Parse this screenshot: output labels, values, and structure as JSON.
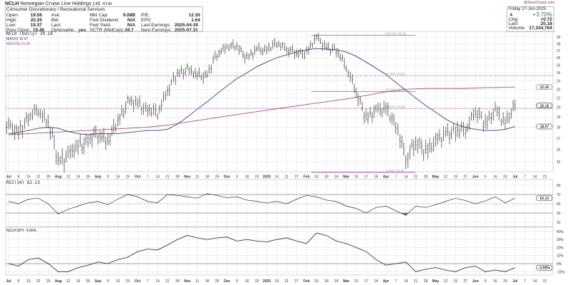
{
  "header": {
    "symbol": "NCLH",
    "name": "Norwegian Cruise Line Holdings Ltd.",
    "exchange": "NYSE",
    "sector": "Consumer Discretionary / Recreational Services",
    "watermark": "@StockCharts.com",
    "fields": {
      "open_label": "Open:",
      "open": "19.56",
      "high_label": "High:",
      "high": "20.25",
      "low_label": "Low:",
      "low": "19.37",
      "prev_label": "Prev Close:",
      "prev": "19.46",
      "ask_label": "Ask:",
      "bid_label": "Bid:",
      "last_label": "Last:",
      "optionable_label": "Optionable:",
      "optionable": "yes",
      "mktcap_label": "Mkt Cap:",
      "mktcap": "9.08B",
      "fwddiv_label": "Fwd Dividend:",
      "fwddiv": "N/A",
      "fwdyield_label": "Fwd Yield:",
      "fwdyield": "N/A",
      "sctr_label": "SCTR (MidCap):",
      "sctr": "28.7",
      "pe_label": "P/E:",
      "pe": "12.30",
      "eps_label": "EPS:",
      "eps": "1.64",
      "lastearn_label": "Last Earnings:",
      "lastearn": "2025-04-30",
      "nextearn_label": "Next Earnings:",
      "nextearn": "2025-07.31"
    },
    "summary": {
      "date": "Friday  27-Jun-2025",
      "pct": "+3.70%",
      "chg_label": "Chg:",
      "chg": "+0.72",
      "last_label": "Last",
      "last": "20.18",
      "volume_label": "Volume:",
      "volume": "17,334,764",
      "up_color": "#2e7d32"
    }
  },
  "chart_data": [
    {
      "type": "ohlc",
      "title": "NCLH (Daily) 20.18",
      "legend": [
        "MA(50) 18.07",
        "MA(200) 22.26"
      ],
      "scale": "log",
      "ylim": [
        14,
        29.5
      ],
      "yticks": [
        "29",
        "28",
        "27",
        "26",
        "25",
        "24",
        "23",
        "22",
        "21",
        "20",
        "19",
        "18",
        "17",
        "16",
        "15"
      ],
      "x_weeks": [
        "2024-07-01",
        "2024-07-08",
        "2024-07-15",
        "2024-07-22",
        "2024-07-29",
        "2024-08-05",
        "2024-08-12",
        "2024-08-19",
        "2024-08-26",
        "2024-09-02",
        "2024-09-09",
        "2024-09-16",
        "2024-09-23",
        "2024-09-30",
        "2024-10-07",
        "2024-10-14",
        "2024-10-21",
        "2024-10-28",
        "2024-11-04",
        "2024-11-11",
        "2024-11-18",
        "2024-11-25",
        "2024-12-02",
        "2024-12-09",
        "2024-12-16",
        "2024-12-23",
        "2024-12-30",
        "2025-01-06",
        "2025-01-13",
        "2025-01-21",
        "2025-01-27",
        "2025-02-03",
        "2025-02-10",
        "2025-02-18",
        "2025-02-24",
        "2025-03-03",
        "2025-03-10",
        "2025-03-17",
        "2025-03-24",
        "2025-03-31",
        "2025-04-07",
        "2025-04-14",
        "2025-04-21",
        "2025-04-28",
        "2025-05-05",
        "2025-05-12",
        "2025-05-19",
        "2025-05-27",
        "2025-06-02",
        "2025-06-09",
        "2025-06-16",
        "2025-06-23"
      ],
      "close": [
        18.0,
        17.5,
        19.0,
        19.8,
        18.5,
        15.0,
        15.5,
        16.2,
        16.8,
        17.5,
        16.8,
        18.5,
        20.6,
        20.3,
        19.8,
        19.4,
        22.0,
        23.8,
        24.5,
        23.5,
        23.8,
        26.5,
        27.8,
        27.5,
        26.0,
        27.0,
        27.2,
        28.0,
        27.5,
        26.5,
        26.8,
        28.8,
        27.5,
        27.0,
        25.0,
        21.5,
        19.0,
        19.5,
        20.0,
        18.0,
        15.5,
        16.5,
        16.0,
        16.5,
        17.5,
        17.5,
        18.0,
        19.5,
        18.5,
        19.5,
        18.5,
        20.18
      ],
      "ma50": [
        17.4,
        17.5,
        17.7,
        17.9,
        18.0,
        17.9,
        17.6,
        17.4,
        17.3,
        17.4,
        17.4,
        17.4,
        17.5,
        17.6,
        17.7,
        17.7,
        17.8,
        18.3,
        19.0,
        19.8,
        20.6,
        21.5,
        22.4,
        23.3,
        24.0,
        24.8,
        25.4,
        26.0,
        26.4,
        26.8,
        27.1,
        27.3,
        27.2,
        27.1,
        26.8,
        26.2,
        25.4,
        24.6,
        23.8,
        22.8,
        21.9,
        21.0,
        20.2,
        19.5,
        18.8,
        18.3,
        18.0,
        17.8,
        17.7,
        17.7,
        17.8,
        18.07
      ],
      "ma200": [
        17.3,
        17.35,
        17.4,
        17.45,
        17.5,
        17.55,
        17.6,
        17.65,
        17.7,
        17.75,
        17.8,
        17.85,
        17.9,
        17.95,
        18.0,
        18.1,
        18.2,
        18.35,
        18.5,
        18.65,
        18.8,
        18.95,
        19.1,
        19.25,
        19.4,
        19.55,
        19.7,
        19.85,
        20.0,
        20.15,
        20.3,
        20.45,
        20.6,
        20.75,
        20.9,
        21.1,
        21.3,
        21.5,
        21.7,
        21.85,
        22.0,
        22.05,
        22.1,
        22.1,
        22.1,
        22.1,
        22.1,
        22.15,
        22.2,
        22.2,
        22.25,
        22.26
      ],
      "fib_levels": [
        {
          "label": "100.0%: 29.29",
          "value": 29.29,
          "style": "solid"
        },
        {
          "label": "61.8%: 23.62",
          "value": 23.62,
          "style": "dashed"
        },
        {
          "label": "50.0%: 21.74",
          "value": 21.74,
          "style": "solid"
        },
        {
          "label": "38.2%: 19.86",
          "value": 19.86,
          "style": "dashed"
        },
        {
          "label": "0.0%: 14.18",
          "value": 14.18,
          "style": "solid"
        }
      ],
      "badges": {
        "ma200": "22.26",
        "last": "20.18",
        "ma50": "18.07"
      },
      "colors": {
        "bars": "#333333",
        "ma50": "#3c3f78",
        "ma200": "#a0527a",
        "fib": "#b44fb4"
      }
    },
    {
      "type": "line",
      "title": "RSI(14) 62.13",
      "ylim": [
        0,
        100
      ],
      "yticks": [
        "90",
        "70",
        "50",
        "30",
        "10"
      ],
      "bands": [
        30,
        50,
        70
      ],
      "values": [
        55,
        50,
        60,
        62,
        50,
        28,
        38,
        45,
        52,
        55,
        48,
        60,
        70,
        65,
        55,
        52,
        70,
        68,
        65,
        62,
        72,
        68,
        63,
        65,
        58,
        55,
        52,
        55,
        50,
        60,
        68,
        65,
        58,
        55,
        45,
        40,
        30,
        42,
        45,
        35,
        25,
        45,
        42,
        48,
        55,
        62,
        57,
        50,
        56,
        65,
        52,
        62.13
      ],
      "badge": "62.13",
      "colors": {
        "over": "#5f8a5f",
        "under": "#9a5a55"
      }
    },
    {
      "type": "line",
      "title": "NCLH:SPY -4.99%",
      "unit": "%",
      "yticks": [
        "40%",
        "30%",
        "20%",
        "10%",
        "0%",
        "-10%"
      ],
      "values": [
        0,
        -3,
        5,
        7,
        0,
        -10,
        -10,
        -5,
        -2,
        2,
        0,
        5,
        8,
        15,
        18,
        17,
        23,
        30,
        35,
        32,
        30,
        32,
        33,
        28,
        30,
        28,
        27,
        30,
        32,
        28,
        25,
        38,
        35,
        28,
        25,
        20,
        15,
        5,
        -2,
        0,
        2,
        -10,
        -7,
        -5,
        -8,
        -10,
        -5,
        -3,
        -10,
        -8,
        -10,
        -4.99
      ],
      "badge": "-4.99%"
    }
  ],
  "x_axis_labels": [
    {
      "t": "Jul",
      "m": true
    },
    {
      "t": "8"
    },
    {
      "t": "15"
    },
    {
      "t": "22"
    },
    {
      "t": "29"
    },
    {
      "t": "Aug",
      "m": true
    },
    {
      "t": "12"
    },
    {
      "t": "19"
    },
    {
      "t": "26"
    },
    {
      "t": "Sep",
      "m": true
    },
    {
      "t": "9"
    },
    {
      "t": "16"
    },
    {
      "t": "23"
    },
    {
      "t": "Oct",
      "m": true
    },
    {
      "t": "7"
    },
    {
      "t": "14"
    },
    {
      "t": "21"
    },
    {
      "t": "28"
    },
    {
      "t": "Nov",
      "m": true
    },
    {
      "t": "11"
    },
    {
      "t": "18"
    },
    {
      "t": "25"
    },
    {
      "t": "Dec",
      "m": true
    },
    {
      "t": "9"
    },
    {
      "t": "16"
    },
    {
      "t": "23"
    },
    {
      "t": "2025",
      "m": true
    },
    {
      "t": "13"
    },
    {
      "t": "21"
    },
    {
      "t": "27"
    },
    {
      "t": "Feb",
      "m": true
    },
    {
      "t": "10"
    },
    {
      "t": "18"
    },
    {
      "t": "24"
    },
    {
      "t": "Mar",
      "m": true
    },
    {
      "t": "10"
    },
    {
      "t": "17"
    },
    {
      "t": "24"
    },
    {
      "t": "Apr",
      "m": true
    },
    {
      "t": "7"
    },
    {
      "t": "14"
    },
    {
      "t": "21"
    },
    {
      "t": "28"
    },
    {
      "t": "May",
      "m": true
    },
    {
      "t": "12"
    },
    {
      "t": "19"
    },
    {
      "t": "27"
    },
    {
      "t": "Jun",
      "m": true
    },
    {
      "t": "9"
    },
    {
      "t": "16"
    },
    {
      "t": "23"
    },
    {
      "t": "Jul",
      "m": true
    },
    {
      "t": "7"
    },
    {
      "t": "14"
    },
    {
      "t": "21"
    }
  ]
}
